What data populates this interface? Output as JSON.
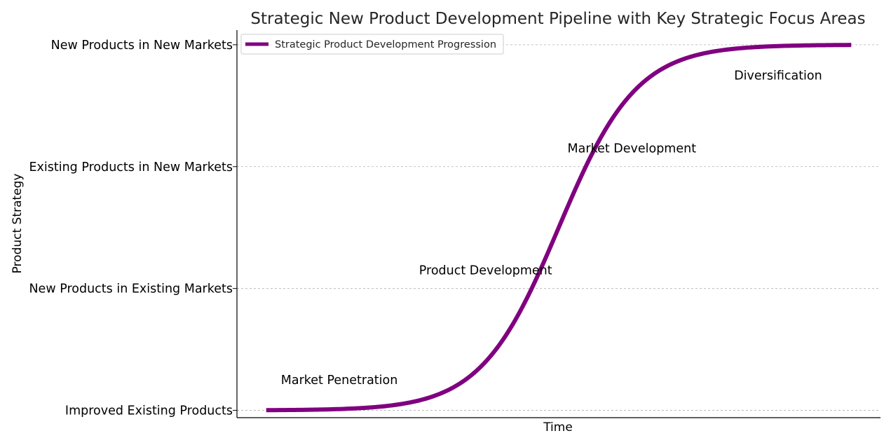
{
  "chart_data": {
    "type": "line",
    "title": "Strategic New Product Development Pipeline with Key Strategic Focus Areas",
    "xlabel": "Time",
    "ylabel": "Product Strategy",
    "y_categories": [
      "Improved Existing Products",
      "New Products in Existing Markets",
      "Existing Products in New Markets",
      "New Products in New Markets"
    ],
    "ylim": [
      -0.06,
      3.12
    ],
    "xlim": [
      -0.5,
      10.5
    ],
    "grid": "horizontal-dashed",
    "legend_placement": "top-left",
    "series": [
      {
        "name": "Strategic Product Development Progression",
        "color": "#800080",
        "curve": "logistic",
        "x_range": [
          0,
          10
        ],
        "L": 3,
        "k": 1.5,
        "x0": 5
      }
    ],
    "annotations": [
      {
        "text": "Market Penetration",
        "x": 1.25,
        "y": 0.25
      },
      {
        "text": "Product Development",
        "x": 3.75,
        "y": 1.15
      },
      {
        "text": "Market Development",
        "x": 6.25,
        "y": 2.15
      },
      {
        "text": "Diversification",
        "x": 8.75,
        "y": 2.75
      }
    ]
  }
}
